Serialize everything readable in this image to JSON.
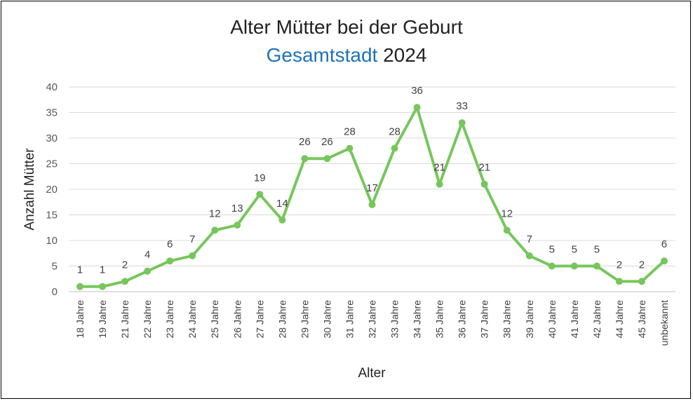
{
  "chart_data": {
    "type": "line",
    "title": "Alter Mütter bei der Geburt",
    "subtitle_area": "Gesamtstadt",
    "subtitle_year": "2024",
    "xlabel": "Alter",
    "ylabel": "Anzahl Mütter",
    "ylim": [
      0,
      40
    ],
    "yticks": [
      0,
      5,
      10,
      15,
      20,
      25,
      30,
      35,
      40
    ],
    "grid": true,
    "categories": [
      "18 Jahre",
      "19 Jahre",
      "21 Jahre",
      "22 Jahre",
      "23 Jahre",
      "24 Jahre",
      "25 Jahre",
      "26 Jahre",
      "27 Jahre",
      "28 Jahre",
      "29 Jahre",
      "30 Jahre",
      "31 Jahre",
      "32 Jahre",
      "33 Jahre",
      "34 Jahre",
      "35 Jahre",
      "36 Jahre",
      "37 Jahre",
      "38 Jahre",
      "39 Jahre",
      "40 Jahre",
      "41 Jahre",
      "42 Jahre",
      "44 Jahre",
      "45 Jahre",
      "unbekannt"
    ],
    "series": [
      {
        "name": "Anzahl Mütter",
        "color": "#77c65c",
        "values": [
          1,
          1,
          2,
          4,
          6,
          7,
          12,
          13,
          19,
          14,
          26,
          26,
          28,
          17,
          28,
          36,
          21,
          33,
          21,
          12,
          7,
          5,
          5,
          5,
          2,
          2,
          6
        ]
      }
    ]
  }
}
